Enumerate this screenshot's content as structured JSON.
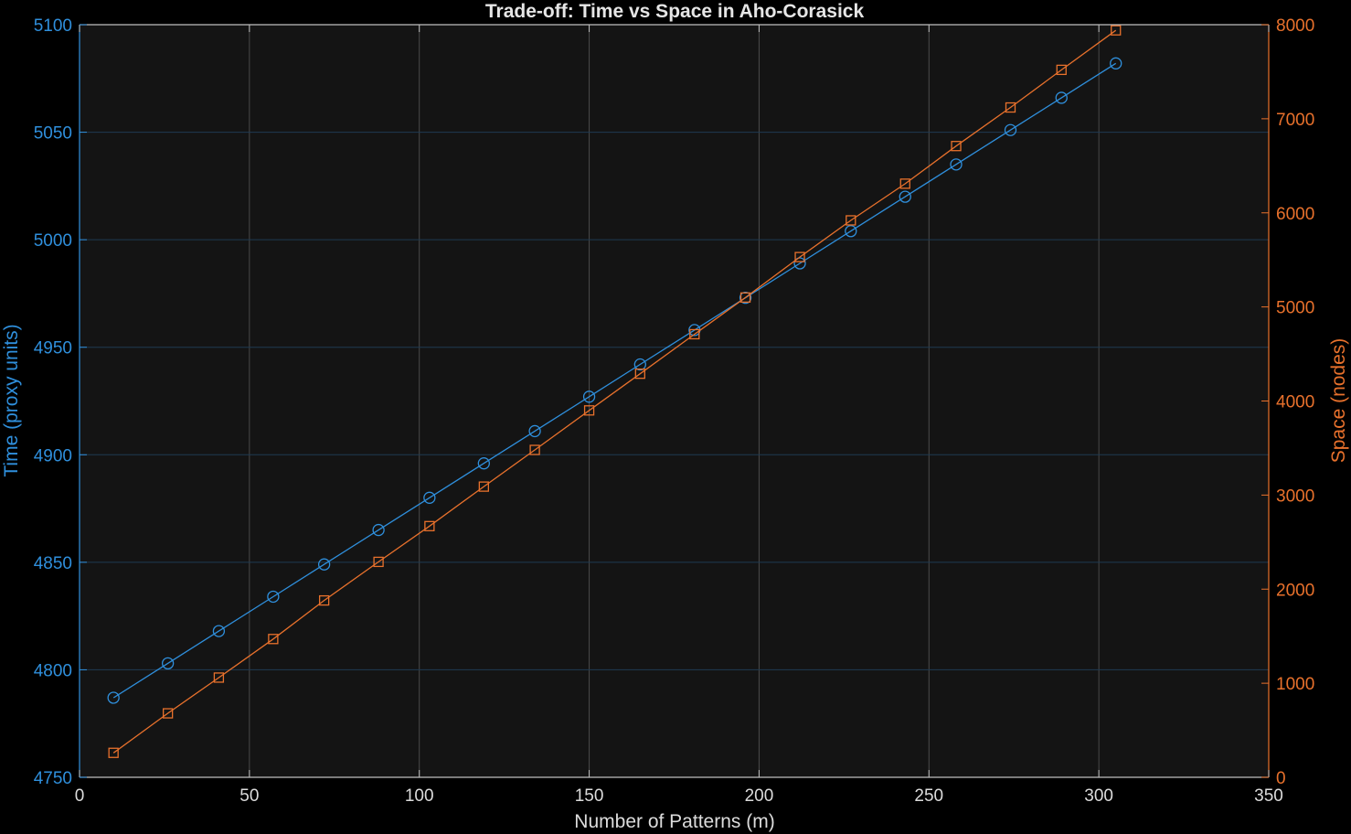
{
  "chart_data": {
    "type": "line",
    "title": "Trade-off: Time vs Space in Aho-Corasick",
    "xlabel": "Number of Patterns (m)",
    "ylabel_left": "Time (proxy units)",
    "ylabel_right": "Space (nodes)",
    "xlim": [
      0,
      350
    ],
    "ylim_left": [
      4750,
      5100
    ],
    "ylim_right": [
      0,
      8000
    ],
    "x_ticks": [
      "0",
      "50",
      "100",
      "150",
      "200",
      "250",
      "300",
      "350"
    ],
    "y_left_ticks": [
      "4750",
      "4800",
      "4850",
      "4900",
      "4950",
      "5000",
      "5050",
      "5100"
    ],
    "y_right_ticks": [
      "0",
      "1000",
      "2000",
      "3000",
      "4000",
      "5000",
      "6000",
      "7000",
      "8000"
    ],
    "grid": true,
    "x": [
      10,
      26,
      41,
      57,
      72,
      88,
      103,
      119,
      134,
      150,
      165,
      181,
      196,
      212,
      227,
      243,
      258,
      274,
      289,
      305
    ],
    "series": [
      {
        "axis": "left",
        "marker": "circle",
        "color": "#2f8fdc",
        "values": [
          4787,
          4803,
          4818,
          4834,
          4849,
          4865,
          4880,
          4896,
          4911,
          4927,
          4942,
          4958,
          4973,
          4989,
          5004,
          5020,
          5035,
          5051,
          5066,
          5082
        ]
      },
      {
        "axis": "right",
        "marker": "square",
        "color": "#e8712c",
        "values": [
          260,
          680,
          1060,
          1470,
          1880,
          2290,
          2670,
          3090,
          3480,
          3900,
          4290,
          4710,
          5100,
          5530,
          5920,
          6310,
          6710,
          7120,
          7520,
          7940
        ]
      }
    ]
  }
}
